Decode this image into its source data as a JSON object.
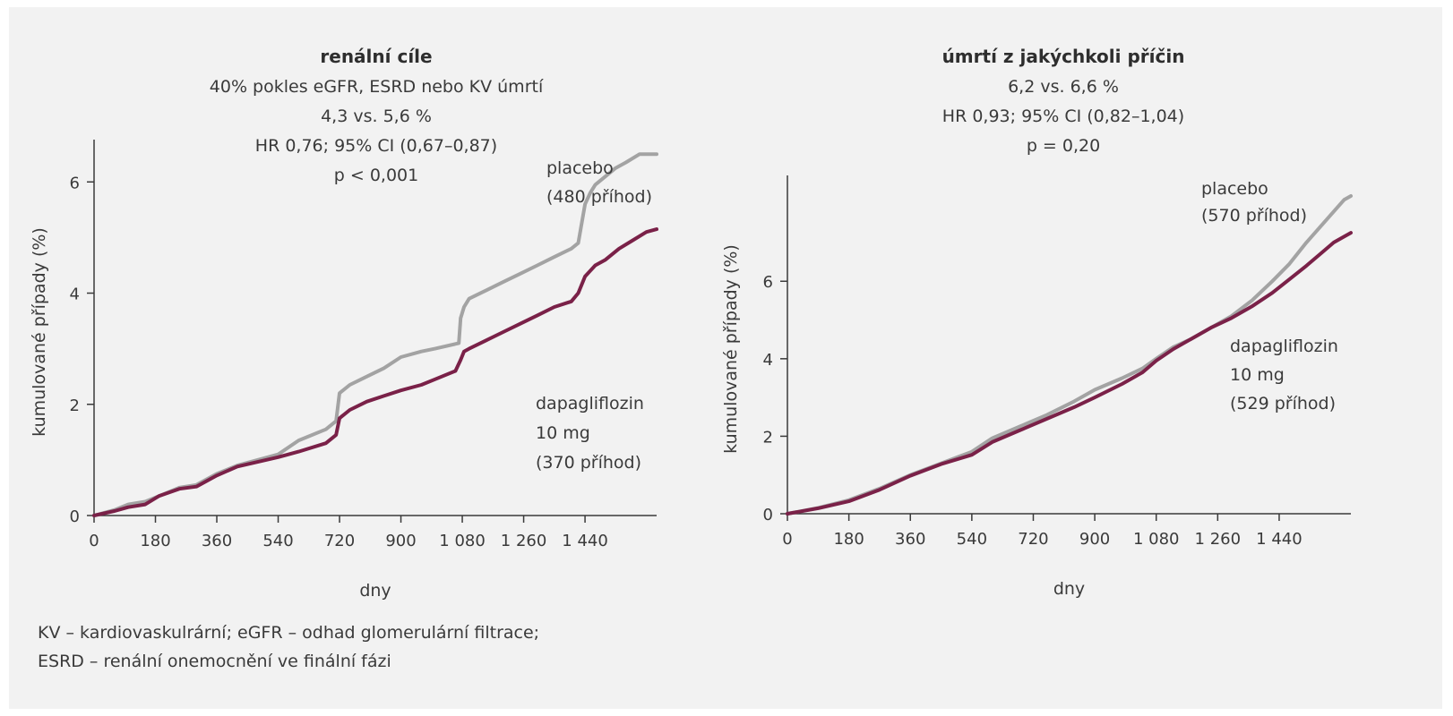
{
  "footnote": {
    "line1": "KV – kardiovaskulrární; eGFR – odhad glomerulární filtrace;",
    "line2": "ESRD – renální onemocnění ve finální fázi"
  },
  "colors": {
    "placebo": "#a3a3a3",
    "dapagliflozin": "#7a2148",
    "axis": "#3a3a3a",
    "background": "#f2f2f2"
  },
  "chart_data": [
    {
      "type": "line",
      "title": "renální cíle",
      "subtitle_lines": [
        "40% pokles eGFR, ESRD nebo KV úmrtí",
        "4,3 vs. 5,6 %",
        "HR 0,76; 95% CI (0,67–0,87)",
        "p < 0,001"
      ],
      "xlabel": "dny",
      "ylabel": "kumulované případy (%)",
      "xlim": [
        0,
        1650
      ],
      "ylim": [
        0,
        6.6
      ],
      "xticks": [
        0,
        180,
        360,
        540,
        720,
        900,
        1080,
        1260,
        1440
      ],
      "xtick_labels": [
        "0",
        "180",
        "360",
        "540",
        "720",
        "900",
        "1 080",
        "1 260",
        "1 440"
      ],
      "yticks": [
        0,
        2,
        4,
        6
      ],
      "grid": false,
      "series": [
        {
          "name": "placebo",
          "label_lines": [
            "placebo",
            "(480 příhod)"
          ],
          "x": [
            0,
            60,
            100,
            150,
            190,
            250,
            300,
            360,
            420,
            540,
            600,
            680,
            710,
            720,
            750,
            800,
            850,
            900,
            960,
            1000,
            1070,
            1075,
            1085,
            1100,
            1150,
            1200,
            1250,
            1300,
            1350,
            1400,
            1420,
            1440,
            1455,
            1470,
            1500,
            1530,
            1560,
            1600,
            1650
          ],
          "y": [
            0,
            0.1,
            0.2,
            0.25,
            0.35,
            0.5,
            0.55,
            0.75,
            0.9,
            1.1,
            1.35,
            1.55,
            1.7,
            2.2,
            2.35,
            2.5,
            2.65,
            2.85,
            2.95,
            3.0,
            3.1,
            3.55,
            3.75,
            3.9,
            4.05,
            4.2,
            4.35,
            4.5,
            4.65,
            4.8,
            4.9,
            5.6,
            5.8,
            5.95,
            6.1,
            6.25,
            6.35,
            6.5,
            6.5
          ]
        },
        {
          "name": "dapagliflozin",
          "label_lines": [
            "dapagliflozin",
            "10 mg",
            "(370 příhod)"
          ],
          "x": [
            0,
            60,
            100,
            150,
            190,
            250,
            300,
            360,
            420,
            540,
            600,
            680,
            710,
            720,
            750,
            800,
            850,
            900,
            960,
            1000,
            1060,
            1075,
            1085,
            1100,
            1150,
            1200,
            1250,
            1300,
            1350,
            1400,
            1420,
            1440,
            1455,
            1470,
            1500,
            1540,
            1580,
            1620,
            1650
          ],
          "y": [
            0,
            0.08,
            0.15,
            0.2,
            0.35,
            0.48,
            0.52,
            0.72,
            0.88,
            1.05,
            1.15,
            1.3,
            1.45,
            1.75,
            1.9,
            2.05,
            2.15,
            2.25,
            2.35,
            2.45,
            2.6,
            2.8,
            2.95,
            3.0,
            3.15,
            3.3,
            3.45,
            3.6,
            3.75,
            3.85,
            4.0,
            4.3,
            4.4,
            4.5,
            4.6,
            4.8,
            4.95,
            5.1,
            5.15
          ]
        }
      ]
    },
    {
      "type": "line",
      "title": "úmrtí z jakýchkoli příčin",
      "subtitle_lines": [
        "6,2 vs. 6,6 %",
        "HR 0,93; 95% CI (0,82–1,04)",
        "p = 0,20"
      ],
      "xlabel": "dny",
      "ylabel": "kumulované případy (%)",
      "xlim": [
        0,
        1650
      ],
      "ylim": [
        0,
        8.5
      ],
      "xticks": [
        0,
        180,
        360,
        540,
        720,
        900,
        1080,
        1260,
        1440
      ],
      "xtick_labels": [
        "0",
        "180",
        "360",
        "540",
        "720",
        "900",
        "1 080",
        "1 260",
        "1 440"
      ],
      "yticks": [
        0,
        2,
        4,
        6
      ],
      "grid": false,
      "series": [
        {
          "name": "placebo",
          "label_lines": [
            "placebo",
            "(570 příhod)"
          ],
          "x": [
            0,
            90,
            180,
            270,
            360,
            450,
            540,
            600,
            680,
            760,
            840,
            900,
            980,
            1040,
            1080,
            1130,
            1180,
            1240,
            1300,
            1360,
            1420,
            1470,
            1520,
            1560,
            1600,
            1630,
            1650
          ],
          "y": [
            0,
            0.15,
            0.35,
            0.65,
            1.0,
            1.3,
            1.6,
            1.95,
            2.25,
            2.55,
            2.9,
            3.2,
            3.5,
            3.75,
            4.0,
            4.3,
            4.5,
            4.8,
            5.1,
            5.5,
            6.0,
            6.45,
            7.0,
            7.4,
            7.8,
            8.1,
            8.2
          ]
        },
        {
          "name": "dapagliflozin",
          "label_lines": [
            "dapagliflozin",
            "10 mg",
            "(529 příhod)"
          ],
          "x": [
            0,
            90,
            180,
            270,
            360,
            450,
            540,
            600,
            680,
            760,
            840,
            900,
            980,
            1040,
            1080,
            1130,
            1180,
            1240,
            1300,
            1360,
            1420,
            1470,
            1520,
            1560,
            1600,
            1630,
            1650
          ],
          "y": [
            0,
            0.14,
            0.32,
            0.62,
            0.98,
            1.28,
            1.52,
            1.85,
            2.15,
            2.45,
            2.75,
            3.0,
            3.35,
            3.65,
            3.95,
            4.25,
            4.5,
            4.8,
            5.05,
            5.35,
            5.7,
            6.05,
            6.4,
            6.7,
            7.0,
            7.15,
            7.25
          ]
        }
      ]
    }
  ]
}
